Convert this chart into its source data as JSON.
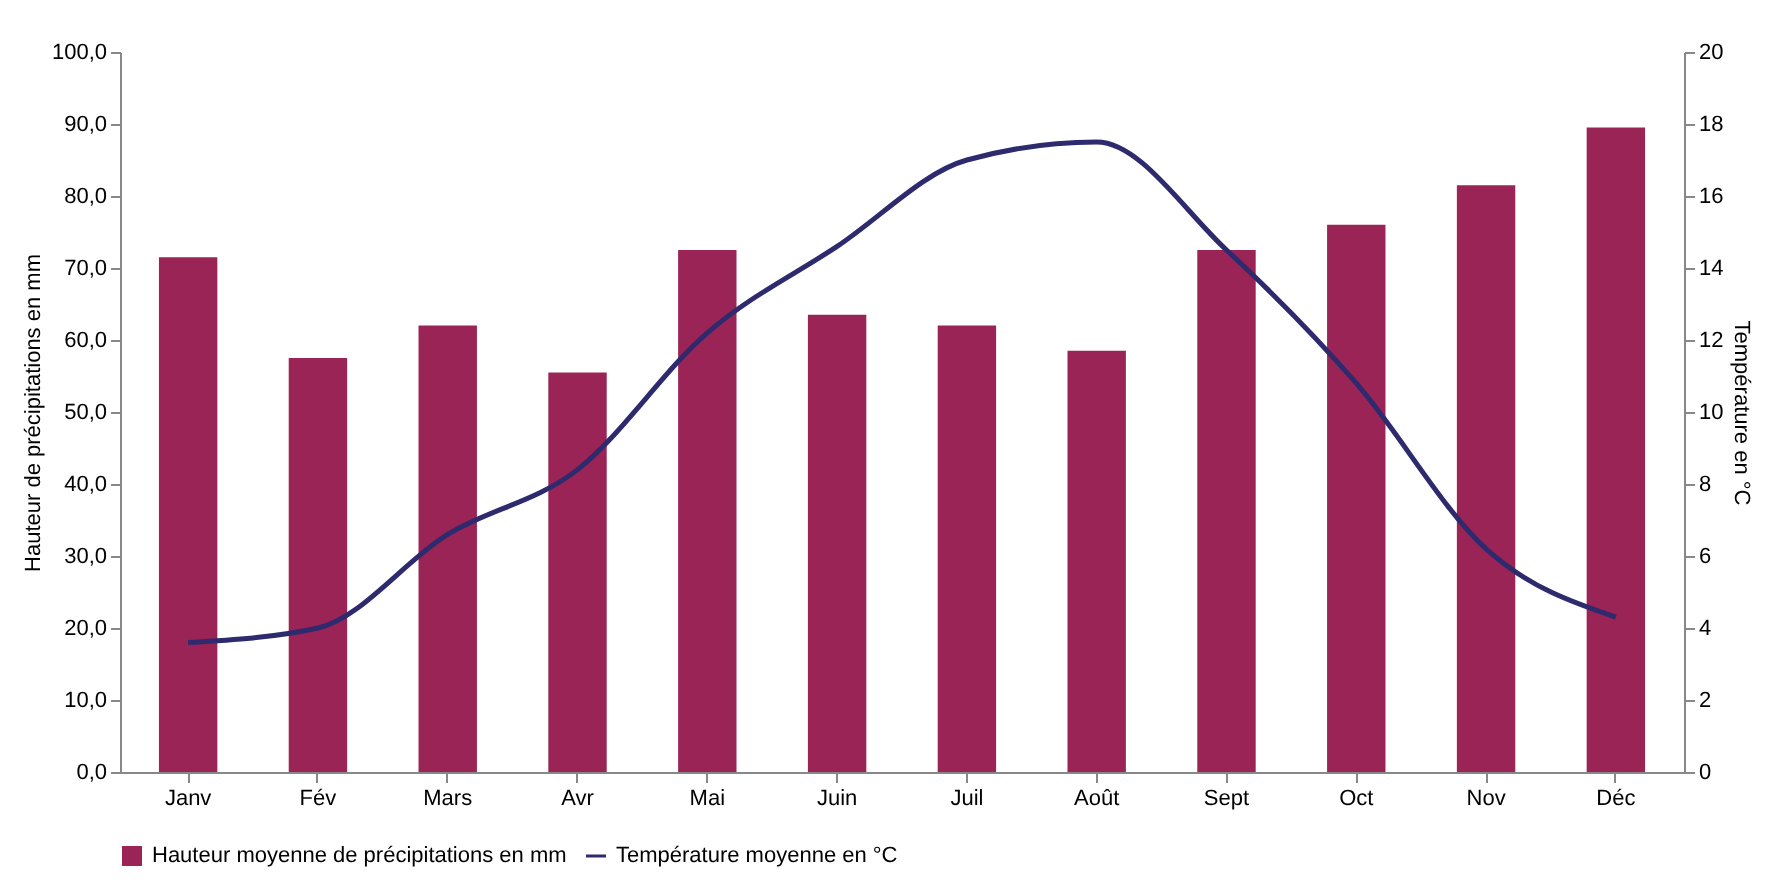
{
  "chart_data": {
    "type": "bar",
    "categories": [
      "Janv",
      "Fév",
      "Mars",
      "Avr",
      "Mai",
      "Juin",
      "Juil",
      "Août",
      "Sept",
      "Oct",
      "Nov",
      "Déc"
    ],
    "ylabel": "Hauteur de précipitations en mm",
    "y2label": "Température en °C",
    "ylim": [
      0,
      100
    ],
    "yticks": [
      {
        "value": 0,
        "label": "0,0"
      },
      {
        "value": 10,
        "label": "10,0"
      },
      {
        "value": 20,
        "label": "20,0"
      },
      {
        "value": 30,
        "label": "30,0"
      },
      {
        "value": 40,
        "label": "40,0"
      },
      {
        "value": 50,
        "label": "50,0"
      },
      {
        "value": 60,
        "label": "60,0"
      },
      {
        "value": 70,
        "label": "70,0"
      },
      {
        "value": 80,
        "label": "80,0"
      },
      {
        "value": 90,
        "label": "90,0"
      },
      {
        "value": 100,
        "label": "100,0"
      }
    ],
    "y2lim": [
      0,
      20
    ],
    "y2ticks": [
      0,
      2,
      4,
      6,
      8,
      10,
      12,
      14,
      16,
      18,
      20
    ],
    "series": [
      {
        "name": "Hauteur moyenne de précipitations en mm",
        "color": "#9b2456",
        "values": [
          71.5,
          57.5,
          62,
          55.5,
          72.5,
          63.5,
          62,
          58.5,
          72.5,
          76,
          81.5,
          89.5
        ]
      },
      {
        "name": "Température moyenne en °C",
        "type": "line",
        "axis": "y2",
        "color": "#2e2a6e",
        "values": [
          3.6,
          4.0,
          6.6,
          8.4,
          12.2,
          14.6,
          17.0,
          17.5,
          14.5,
          10.8,
          6.2,
          4.3
        ]
      }
    ],
    "grid": false,
    "legend": "bottom"
  }
}
